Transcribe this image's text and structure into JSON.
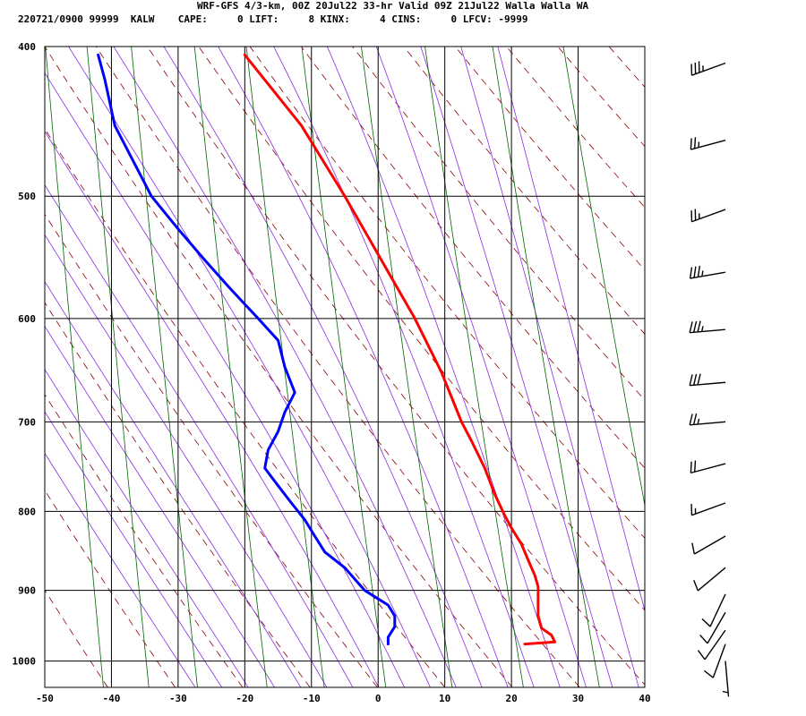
{
  "header": {
    "title": "WRF-GFS 4/3-km, 00Z 20Jul22 33-hr Valid 09Z 21Jul22 Walla Walla WA",
    "info": "220721/0900 99999  KALW    CAPE:     0 LIFT:     8 KINX:     4 CINS:     0 LFCV: -9999"
  },
  "colors": {
    "temperature": "#ff0000",
    "dewpoint": "#0000ff",
    "dry_adiabat": "#8b0000",
    "moist_adiabat": "#8a2be2",
    "mixing_ratio": "#006400",
    "grid": "#000000"
  },
  "chart_data": {
    "type": "skew-t",
    "xlabel": "",
    "ylabel": "",
    "x_range": [
      -50,
      40
    ],
    "p_range": [
      1040,
      400
    ],
    "x_ticks": [
      -50,
      -40,
      -30,
      -20,
      -10,
      0,
      10,
      20,
      30,
      40
    ],
    "x_tick_labels": [
      "-50",
      "-40",
      "-30",
      "-20",
      "-10",
      "0",
      "10",
      "20",
      "30",
      "40"
    ],
    "p_ticks": [
      400,
      500,
      600,
      700,
      800,
      900,
      1000
    ],
    "p_tick_labels": [
      "400",
      "500",
      "600",
      "700",
      "800",
      "900",
      "1000"
    ],
    "grid": true,
    "series": [
      {
        "key": "temperature",
        "points": [
          [
            975,
            22
          ],
          [
            972,
            26.5
          ],
          [
            962,
            26
          ],
          [
            952,
            24.5
          ],
          [
            935,
            24
          ],
          [
            910,
            24
          ],
          [
            895,
            24
          ],
          [
            880,
            23.5
          ],
          [
            860,
            22.5
          ],
          [
            840,
            21.5
          ],
          [
            820,
            20
          ],
          [
            805,
            19
          ],
          [
            780,
            17.5
          ],
          [
            750,
            16
          ],
          [
            720,
            14
          ],
          [
            700,
            12.5
          ],
          [
            650,
            9.5
          ],
          [
            600,
            5.5
          ],
          [
            550,
            0.5
          ],
          [
            500,
            -5
          ],
          [
            450,
            -11.5
          ],
          [
            405,
            -20
          ]
        ]
      },
      {
        "key": "dewpoint",
        "points": [
          [
            975,
            1.5
          ],
          [
            965,
            1.5
          ],
          [
            950,
            2.5
          ],
          [
            935,
            2.5
          ],
          [
            920,
            1.5
          ],
          [
            900,
            -2
          ],
          [
            885,
            -3.5
          ],
          [
            870,
            -5
          ],
          [
            850,
            -8
          ],
          [
            830,
            -9.5
          ],
          [
            810,
            -11
          ],
          [
            790,
            -13
          ],
          [
            770,
            -15
          ],
          [
            750,
            -17
          ],
          [
            730,
            -16.5
          ],
          [
            710,
            -15
          ],
          [
            690,
            -14
          ],
          [
            670,
            -12.5
          ],
          [
            645,
            -14
          ],
          [
            620,
            -15
          ],
          [
            600,
            -18
          ],
          [
            575,
            -22
          ],
          [
            550,
            -26
          ],
          [
            525,
            -30
          ],
          [
            500,
            -34
          ],
          [
            450,
            -39.5
          ],
          [
            420,
            -41
          ],
          [
            405,
            -42
          ]
        ]
      }
    ],
    "wind_barbs": [
      {
        "p": 410,
        "dir": 250,
        "speed": 35
      },
      {
        "p": 460,
        "dir": 255,
        "speed": 25
      },
      {
        "p": 510,
        "dir": 250,
        "speed": 25
      },
      {
        "p": 560,
        "dir": 260,
        "speed": 35
      },
      {
        "p": 610,
        "dir": 265,
        "speed": 35
      },
      {
        "p": 660,
        "dir": 265,
        "speed": 30
      },
      {
        "p": 700,
        "dir": 265,
        "speed": 25
      },
      {
        "p": 745,
        "dir": 255,
        "speed": 20
      },
      {
        "p": 790,
        "dir": 250,
        "speed": 15
      },
      {
        "p": 830,
        "dir": 240,
        "speed": 10
      },
      {
        "p": 870,
        "dir": 230,
        "speed": 10
      },
      {
        "p": 905,
        "dir": 205,
        "speed": 10
      },
      {
        "p": 930,
        "dir": 210,
        "speed": 10
      },
      {
        "p": 955,
        "dir": 215,
        "speed": 10
      },
      {
        "p": 975,
        "dir": 200,
        "speed": 10
      },
      {
        "p": 1000,
        "dir": 175,
        "speed": 5
      }
    ]
  }
}
